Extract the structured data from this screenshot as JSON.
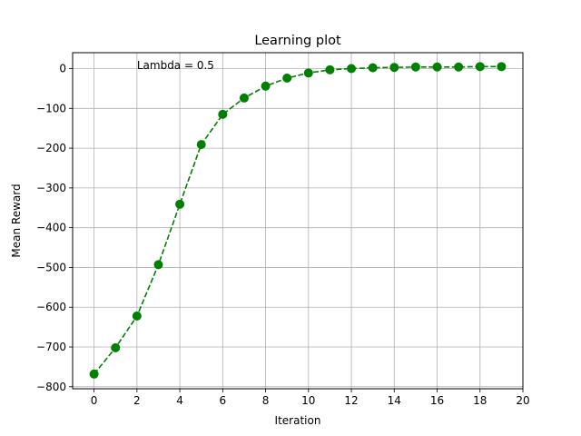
{
  "chart_data": {
    "type": "line",
    "title": "Learning plot",
    "xlabel": "Iteration",
    "ylabel": "Mean Reward",
    "xlim": [
      -1,
      20
    ],
    "ylim": [
      -805,
      40
    ],
    "xticks": [
      0,
      2,
      4,
      6,
      8,
      10,
      12,
      14,
      16,
      18,
      20
    ],
    "yticks": [
      0,
      -100,
      -200,
      -300,
      -400,
      -500,
      -600,
      -700,
      -800
    ],
    "xtick_labels": [
      "0",
      "2",
      "4",
      "6",
      "8",
      "10",
      "12",
      "14",
      "16",
      "18",
      "20"
    ],
    "ytick_labels": [
      "0",
      "−100",
      "−200",
      "−300",
      "−400",
      "−500",
      "−600",
      "−700",
      "−800"
    ],
    "grid": true,
    "annotation": {
      "text": "Lambda = 0.5",
      "x": 2,
      "y": 8
    },
    "series": [
      {
        "color": "#008000",
        "line_style": "dashed",
        "marker": "circle",
        "x": [
          0,
          1,
          2,
          3,
          4,
          5,
          6,
          7,
          8,
          9,
          10,
          11,
          12,
          13,
          14,
          15,
          16,
          17,
          18,
          19
        ],
        "y": [
          -768,
          -702,
          -622,
          -493,
          -341,
          -191,
          -115,
          -74,
          -44,
          -24,
          -11,
          -3,
          0,
          2,
          3,
          4,
          4,
          4,
          5,
          5
        ]
      }
    ]
  }
}
